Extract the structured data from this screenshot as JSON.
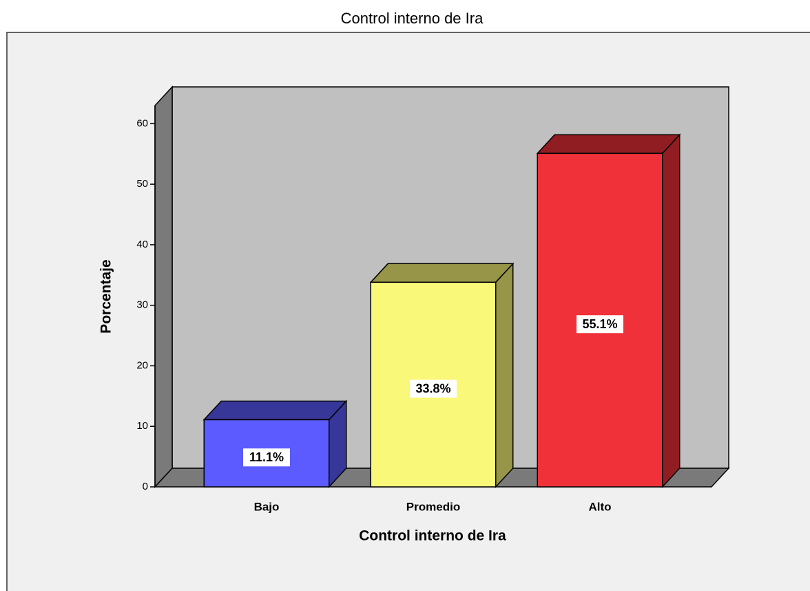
{
  "chart_data": {
    "type": "bar3d",
    "title": "Control interno de Ira",
    "x_label": "Control interno de Ira",
    "y_label": "Porcentaje",
    "categories": [
      "Bajo",
      "Promedio",
      "Alto"
    ],
    "values": [
      11.1,
      33.8,
      55.1
    ],
    "value_labels": [
      "11.1%",
      "33.8%",
      "55.1%"
    ],
    "colors": [
      "#5b5bff",
      "#faf878",
      "#f03139"
    ],
    "ylim": [
      0,
      63
    ],
    "yticks": [
      0,
      10,
      20,
      30,
      40,
      50,
      60
    ],
    "grid": false
  }
}
